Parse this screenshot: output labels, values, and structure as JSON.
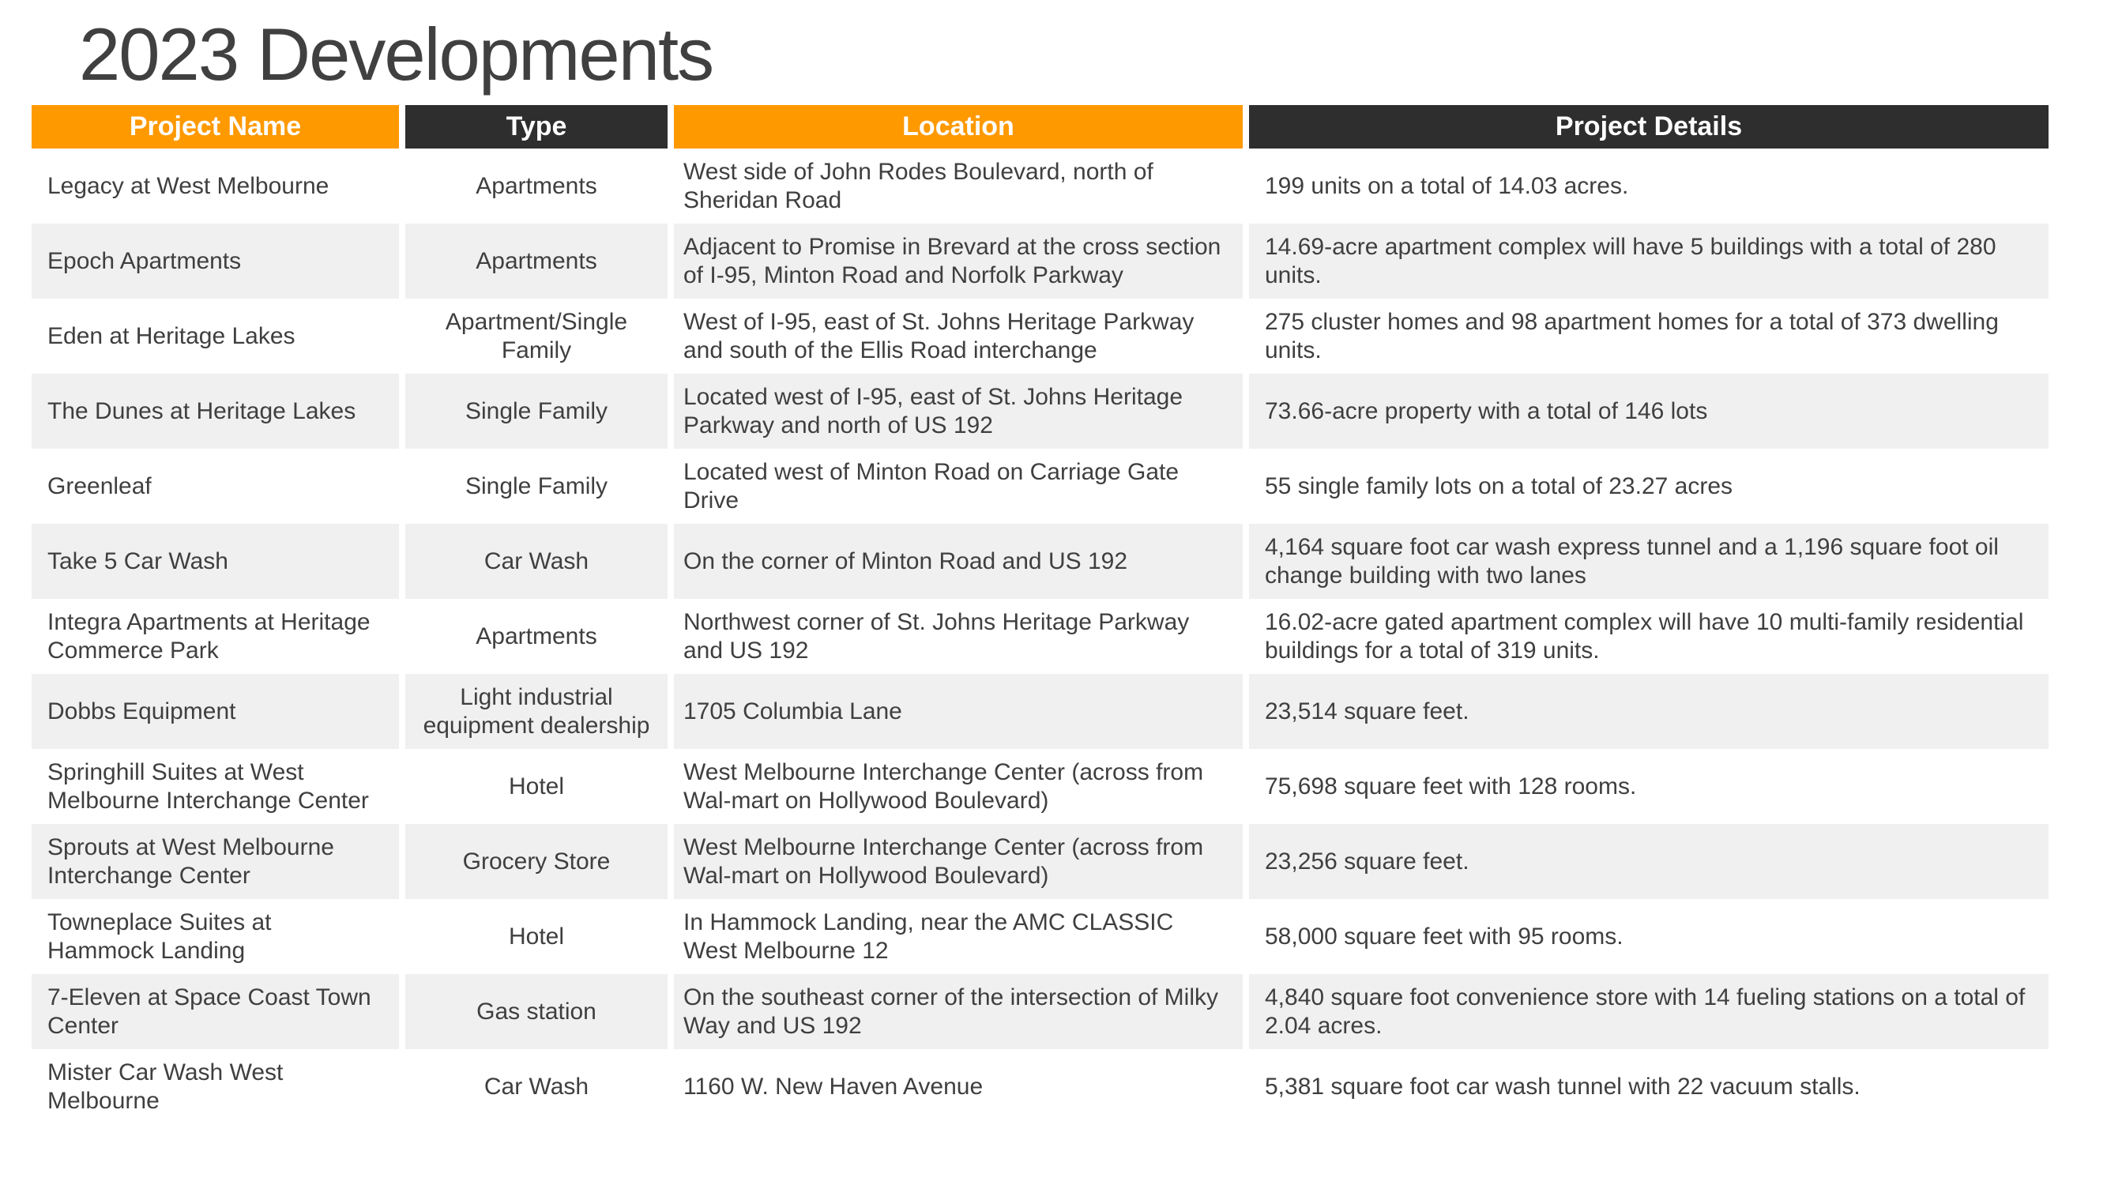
{
  "slide": {
    "title": "2023 Developments"
  },
  "table": {
    "headers": [
      {
        "label": "Project Name"
      },
      {
        "label": "Type"
      },
      {
        "label": "Location"
      },
      {
        "label": "Project Details"
      }
    ],
    "rows": [
      {
        "name": "Legacy at West Melbourne",
        "type": "Apartments",
        "location": "West side of John Rodes Boulevard, north of Sheridan Road",
        "details": "199 units on a total of 14.03 acres."
      },
      {
        "name": "Epoch Apartments",
        "type": "Apartments",
        "location": "Adjacent to Promise in Brevard at the cross section of I-95, Minton Road and Norfolk Parkway",
        "details": "14.69-acre apartment complex will have 5 buildings with a total of 280 units."
      },
      {
        "name": "Eden at Heritage Lakes",
        "type": "Apartment/Single Family",
        "location": "West of I-95, east of St. Johns Heritage Parkway and south of the Ellis Road interchange",
        "details": "275 cluster homes and 98 apartment homes for a total of 373 dwelling units."
      },
      {
        "name": "The Dunes at Heritage Lakes",
        "type": "Single Family",
        "location": "Located west of I-95, east of St. Johns Heritage Parkway and north of US 192",
        "details": "73.66-acre property with a total of 146 lots"
      },
      {
        "name": "Greenleaf",
        "type": "Single Family",
        "location": "Located west of Minton Road on Carriage Gate Drive",
        "details": "55 single family lots on a total of 23.27 acres"
      },
      {
        "name": "Take 5 Car Wash",
        "type": "Car Wash",
        "location": "On the corner of Minton Road and US 192",
        "details": "4,164 square foot car wash express tunnel and a 1,196 square foot oil change building with two lanes"
      },
      {
        "name": "Integra Apartments at Heritage Commerce Park",
        "type": "Apartments",
        "location": "Northwest corner of St. Johns Heritage Parkway and US 192",
        "details": "16.02-acre gated apartment complex will have 10 multi-family residential buildings for a total of 319 units."
      },
      {
        "name": "Dobbs Equipment",
        "type": "Light industrial equipment dealership",
        "location": "1705 Columbia Lane",
        "details": "23,514 square feet."
      },
      {
        "name": "Springhill Suites at West Melbourne Interchange Center",
        "type": "Hotel",
        "location": "West Melbourne Interchange Center (across from Wal-mart on Hollywood Boulevard)",
        "details": "75,698 square feet with 128 rooms."
      },
      {
        "name": "Sprouts at West Melbourne Interchange Center",
        "type": "Grocery Store",
        "location": "West Melbourne Interchange Center (across from Wal-mart on Hollywood Boulevard)",
        "details": "23,256 square feet."
      },
      {
        "name": "Towneplace Suites at Hammock Landing",
        "type": "Hotel",
        "location": "In Hammock Landing, near the AMC CLASSIC West Melbourne 12",
        "details": "58,000 square feet with 95 rooms."
      },
      {
        "name": "7-Eleven at Space Coast Town Center",
        "type": "Gas station",
        "location": "On the southeast corner of the intersection of Milky Way and US 192",
        "details": "4,840 square foot convenience store with 14 fueling stations on a total of 2.04 acres."
      },
      {
        "name": "Mister Car Wash West Melbourne",
        "type": "Car Wash",
        "location": "1160 W. New Haven Avenue",
        "details": "5,381 square foot car wash tunnel with 22 vacuum stalls."
      }
    ],
    "colors": {
      "header_orange": "#FF9900",
      "header_dark": "#2E2E2E",
      "row_stripe": "#F0F0F0",
      "body_text": "#3F3F3F",
      "title_text": "#404040"
    }
  }
}
